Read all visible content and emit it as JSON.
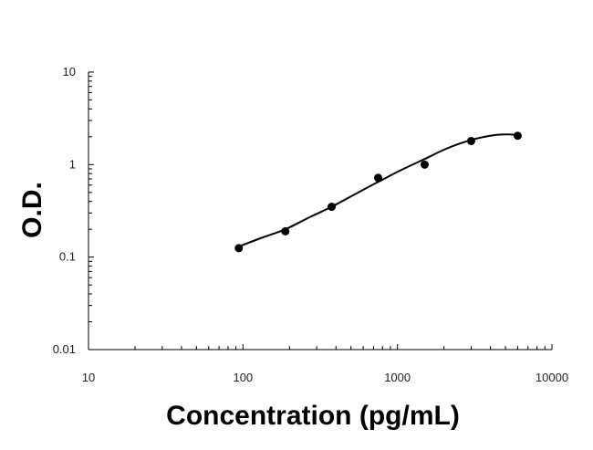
{
  "chart_data": {
    "type": "scatter",
    "title": "",
    "xlabel": "Concentration (pg/mL)",
    "ylabel": "O.D.",
    "x_scale": "log",
    "y_scale": "log",
    "xlim": [
      10,
      10000
    ],
    "ylim": [
      0.01,
      10
    ],
    "x_ticks": [
      10,
      100,
      1000,
      10000
    ],
    "x_tick_labels": [
      "10",
      "100",
      "1000",
      "10000"
    ],
    "y_ticks": [
      0.01,
      0.1,
      1,
      10
    ],
    "y_tick_labels": [
      "0.01",
      "0.1",
      "1",
      "10"
    ],
    "grid": false,
    "legend": "none",
    "series": [
      {
        "marker": "circle",
        "color": "#000000",
        "points": [
          {
            "x": 94,
            "y": 0.125
          },
          {
            "x": 188,
            "y": 0.19
          },
          {
            "x": 375,
            "y": 0.35
          },
          {
            "x": 750,
            "y": 0.72
          },
          {
            "x": 1500,
            "y": 1.0
          },
          {
            "x": 3000,
            "y": 1.8
          },
          {
            "x": 6000,
            "y": 2.05
          }
        ],
        "fit_curve": {
          "type": "smooth fit",
          "color": "#000000",
          "points": [
            {
              "x": 94,
              "y": 0.13
            },
            {
              "x": 130,
              "y": 0.16
            },
            {
              "x": 188,
              "y": 0.2
            },
            {
              "x": 270,
              "y": 0.27
            },
            {
              "x": 375,
              "y": 0.35
            },
            {
              "x": 520,
              "y": 0.47
            },
            {
              "x": 750,
              "y": 0.65
            },
            {
              "x": 1050,
              "y": 0.87
            },
            {
              "x": 1500,
              "y": 1.15
            },
            {
              "x": 2100,
              "y": 1.5
            },
            {
              "x": 3000,
              "y": 1.85
            },
            {
              "x": 4200,
              "y": 2.08
            },
            {
              "x": 5200,
              "y": 2.12
            },
            {
              "x": 6000,
              "y": 2.08
            }
          ]
        }
      }
    ]
  }
}
